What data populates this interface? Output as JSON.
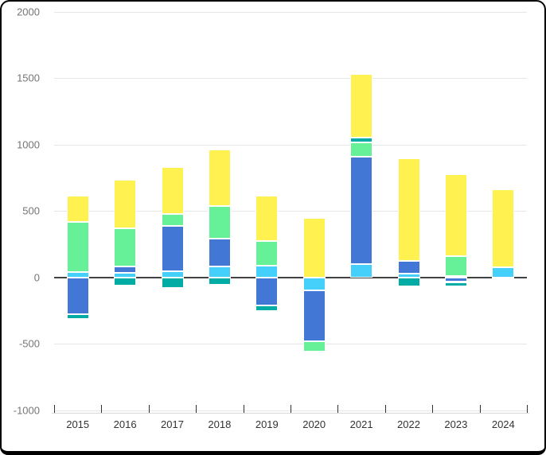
{
  "window": {
    "background": "#ffffff",
    "border_color": "#000000"
  },
  "chart_data": {
    "type": "bar",
    "stacked": true,
    "title": "",
    "xlabel": "",
    "ylabel": "",
    "legend": "none",
    "grid": true,
    "categories": [
      "2015",
      "2016",
      "2017",
      "2018",
      "2019",
      "2020",
      "2021",
      "2022",
      "2023",
      "2024"
    ],
    "series": [
      {
        "name": "cyan",
        "color": "#45D0FB",
        "values": [
          40,
          35,
          45,
          80,
          90,
          -95,
          100,
          25,
          10,
          75
        ]
      },
      {
        "name": "blue",
        "color": "#4377D6",
        "values": [
          -280,
          45,
          345,
          210,
          -210,
          -385,
          810,
          100,
          -35,
          0
        ]
      },
      {
        "name": "green",
        "color": "#66F098",
        "values": [
          375,
          290,
          90,
          245,
          185,
          -80,
          105,
          0,
          150,
          0
        ]
      },
      {
        "name": "teal",
        "color": "#00ACA3",
        "values": [
          -35,
          -60,
          -80,
          -55,
          -45,
          0,
          35,
          -70,
          -35,
          -15
        ]
      },
      {
        "name": "yellow",
        "color": "#FFF150",
        "values": [
          200,
          365,
          350,
          430,
          340,
          445,
          480,
          775,
          620,
          590
        ]
      }
    ],
    "ylim": [
      -1000,
      2000
    ],
    "yticks": [
      2000,
      1500,
      1000,
      500,
      0,
      -500,
      -1000
    ],
    "bar_totals_positive": [
      615,
      735,
      830,
      965,
      615,
      445,
      1530,
      900,
      780,
      665
    ],
    "bar_totals_negative": [
      -315,
      -60,
      -80,
      -55,
      -255,
      -560,
      0,
      -70,
      -70,
      -15
    ],
    "colors": {
      "gridline": "#e6e6e6",
      "zero_line": "#424242",
      "axis_line": "#d9d9d9",
      "tick": "#333333",
      "y_label": "#757575",
      "x_label": "#333333"
    }
  }
}
